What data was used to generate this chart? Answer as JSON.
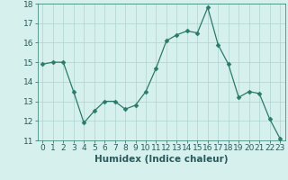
{
  "x": [
    0,
    1,
    2,
    3,
    4,
    5,
    6,
    7,
    8,
    9,
    10,
    11,
    12,
    13,
    14,
    15,
    16,
    17,
    18,
    19,
    20,
    21,
    22,
    23
  ],
  "y": [
    14.9,
    15.0,
    15.0,
    13.5,
    11.9,
    12.5,
    13.0,
    13.0,
    12.6,
    12.8,
    13.5,
    14.7,
    16.1,
    16.4,
    16.6,
    16.5,
    17.8,
    15.9,
    14.9,
    13.2,
    13.5,
    13.4,
    12.1,
    11.1
  ],
  "xlabel": "Humidex (Indice chaleur)",
  "ylim": [
    11,
    18
  ],
  "yticks": [
    11,
    12,
    13,
    14,
    15,
    16,
    17,
    18
  ],
  "xticks": [
    0,
    1,
    2,
    3,
    4,
    5,
    6,
    7,
    8,
    9,
    10,
    11,
    12,
    13,
    14,
    15,
    16,
    17,
    18,
    19,
    20,
    21,
    22,
    23
  ],
  "line_color": "#2a7a6a",
  "marker": "D",
  "marker_size": 2.5,
  "bg_color": "#d6f0ee",
  "grid_color": "#aed4d0",
  "tick_fontsize": 6.5,
  "label_fontsize": 7.5
}
